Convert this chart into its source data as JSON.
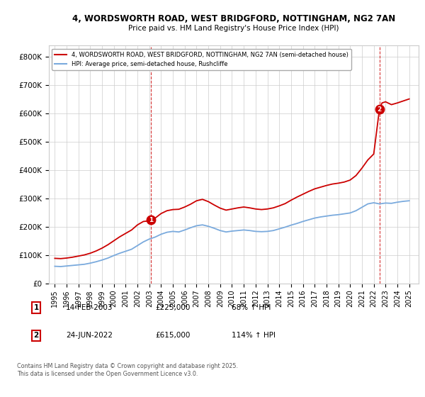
{
  "title_line1": "4, WORDSWORTH ROAD, WEST BRIDGFORD, NOTTINGHAM, NG2 7AN",
  "title_line2": "Price paid vs. HM Land Registry's House Price Index (HPI)",
  "legend_line1": "4, WORDSWORTH ROAD, WEST BRIDGFORD, NOTTINGHAM, NG2 7AN (semi-detached house)",
  "legend_line2": "HPI: Average price, semi-detached house, Rushcliffe",
  "footnote": "Contains HM Land Registry data © Crown copyright and database right 2025.\nThis data is licensed under the Open Government Licence v3.0.",
  "sale1_date": "14-FEB-2003",
  "sale1_price": "£225,000",
  "sale1_hpi": "68% ↑ HPI",
  "sale1_x": 2003.12,
  "sale1_y": 225000,
  "sale2_date": "24-JUN-2022",
  "sale2_price": "£615,000",
  "sale2_hpi": "114% ↑ HPI",
  "sale2_x": 2022.48,
  "sale2_y": 615000,
  "red_color": "#cc0000",
  "blue_color": "#7aaadd",
  "background_color": "#ffffff",
  "grid_color": "#cccccc",
  "ylim": [
    0,
    840000
  ],
  "xlim": [
    1994.5,
    2025.8
  ],
  "yticks": [
    0,
    100000,
    200000,
    300000,
    400000,
    500000,
    600000,
    700000,
    800000
  ],
  "xticks": [
    1995,
    1996,
    1997,
    1998,
    1999,
    2000,
    2001,
    2002,
    2003,
    2004,
    2005,
    2006,
    2007,
    2008,
    2009,
    2010,
    2011,
    2012,
    2013,
    2014,
    2015,
    2016,
    2017,
    2018,
    2019,
    2020,
    2021,
    2022,
    2023,
    2024,
    2025
  ],
  "years_hpi": [
    1995.0,
    1995.5,
    1996.0,
    1996.5,
    1997.0,
    1997.5,
    1998.0,
    1998.5,
    1999.0,
    1999.5,
    2000.0,
    2000.5,
    2001.0,
    2001.5,
    2002.0,
    2002.5,
    2003.0,
    2003.5,
    2004.0,
    2004.5,
    2005.0,
    2005.5,
    2006.0,
    2006.5,
    2007.0,
    2007.5,
    2008.0,
    2008.5,
    2009.0,
    2009.5,
    2010.0,
    2010.5,
    2011.0,
    2011.5,
    2012.0,
    2012.5,
    2013.0,
    2013.5,
    2014.0,
    2014.5,
    2015.0,
    2015.5,
    2016.0,
    2016.5,
    2017.0,
    2017.5,
    2018.0,
    2018.5,
    2019.0,
    2019.5,
    2020.0,
    2020.5,
    2021.0,
    2021.5,
    2022.0,
    2022.5,
    2023.0,
    2023.5,
    2024.0,
    2024.5,
    2025.0
  ],
  "hpi_values": [
    62000,
    61000,
    63000,
    65000,
    67000,
    69000,
    73000,
    78000,
    84000,
    91000,
    100000,
    108000,
    115000,
    122000,
    135000,
    148000,
    158000,
    165000,
    175000,
    182000,
    185000,
    183000,
    190000,
    198000,
    205000,
    208000,
    203000,
    196000,
    188000,
    183000,
    186000,
    188000,
    190000,
    188000,
    185000,
    184000,
    185000,
    188000,
    194000,
    200000,
    207000,
    213000,
    220000,
    226000,
    232000,
    236000,
    239000,
    242000,
    244000,
    247000,
    250000,
    258000,
    270000,
    282000,
    286000,
    282000,
    285000,
    284000,
    288000,
    291000,
    293000
  ],
  "years_red": [
    1995.0,
    1995.5,
    1996.0,
    1996.5,
    1997.0,
    1997.5,
    1998.0,
    1998.5,
    1999.0,
    1999.5,
    2000.0,
    2000.5,
    2001.0,
    2001.5,
    2002.0,
    2002.5,
    2003.0,
    2003.12,
    2003.5,
    2004.0,
    2004.5,
    2005.0,
    2005.5,
    2006.0,
    2006.5,
    2007.0,
    2007.5,
    2008.0,
    2008.5,
    2009.0,
    2009.5,
    2010.0,
    2010.5,
    2011.0,
    2011.5,
    2012.0,
    2012.5,
    2013.0,
    2013.5,
    2014.0,
    2014.5,
    2015.0,
    2015.5,
    2016.0,
    2016.5,
    2017.0,
    2017.5,
    2018.0,
    2018.5,
    2019.0,
    2019.5,
    2020.0,
    2020.5,
    2021.0,
    2021.5,
    2022.0,
    2022.48,
    2022.7,
    2023.0,
    2023.5,
    2024.0,
    2024.5,
    2025.0
  ],
  "red_values": [
    90000,
    89000,
    91000,
    94000,
    98000,
    102000,
    108000,
    116000,
    126000,
    138000,
    152000,
    166000,
    178000,
    190000,
    208000,
    220000,
    222000,
    225000,
    232000,
    248000,
    258000,
    262000,
    263000,
    271000,
    281000,
    293000,
    298000,
    290000,
    278000,
    267000,
    260000,
    264000,
    268000,
    271000,
    268000,
    264000,
    262000,
    264000,
    268000,
    275000,
    283000,
    295000,
    306000,
    316000,
    326000,
    335000,
    341000,
    347000,
    352000,
    355000,
    359000,
    366000,
    382000,
    408000,
    437000,
    458000,
    615000,
    638000,
    642000,
    632000,
    638000,
    645000,
    652000
  ]
}
